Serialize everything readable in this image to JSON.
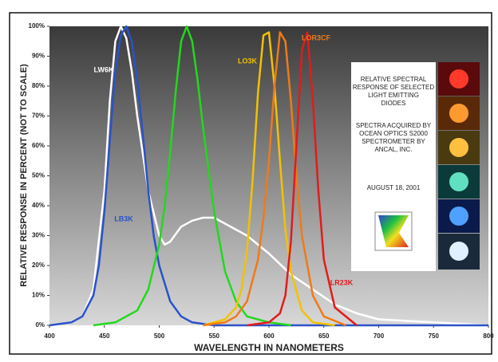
{
  "chart_data": {
    "type": "line",
    "ylabel": "RELATIVE RESPONSE IN PERCENT (NOT TO SCALE)",
    "xlabel": "WAVELENGTH IN NANOMETERS",
    "xlim": [
      400,
      800
    ],
    "xticks": [
      400,
      450,
      500,
      550,
      600,
      650,
      700,
      750,
      800
    ],
    "ylim": [
      0,
      100
    ],
    "yticks": [
      {
        "value": 0,
        "label": "0%"
      },
      {
        "value": 10,
        "label": "10%"
      },
      {
        "value": 20,
        "label": "20%"
      },
      {
        "value": 30,
        "label": "30%"
      },
      {
        "value": 40,
        "label": "40%"
      },
      {
        "value": 50,
        "label": "50%"
      },
      {
        "value": 60,
        "label": "60%"
      },
      {
        "value": 70,
        "label": "70%"
      },
      {
        "value": 80,
        "label": "80%"
      },
      {
        "value": 90,
        "label": "90%"
      },
      {
        "value": 100,
        "label": "100%"
      }
    ],
    "annotations": [
      "RELATIVE SPECTRAL RESPONSE OF SELECTED LIGHT EMITTING DIODES",
      "SPECTRA ACQUIRED BY OCEAN OPTICS S2000 SPECTROMETER BY ANCAL, INC.",
      "AUGUST 18, 2001"
    ],
    "series": [
      {
        "name": "LW6K",
        "color": "#ffffff",
        "x": [
          400,
          420,
          430,
          440,
          450,
          455,
          460,
          465,
          470,
          475,
          480,
          490,
          500,
          505,
          510,
          520,
          530,
          540,
          550,
          560,
          580,
          600,
          620,
          640,
          660,
          680,
          700,
          750,
          800
        ],
        "values": [
          0,
          1,
          3,
          12,
          45,
          75,
          95,
          100,
          96,
          85,
          70,
          45,
          30,
          27,
          28,
          33,
          35,
          36,
          36,
          34,
          30,
          24,
          17,
          12,
          7,
          4,
          2,
          1,
          0
        ]
      },
      {
        "name": "LB3K",
        "color": "#2a52c9",
        "x": [
          400,
          420,
          430,
          440,
          445,
          450,
          455,
          460,
          465,
          470,
          475,
          480,
          485,
          490,
          495,
          500,
          510,
          520,
          530,
          550,
          600,
          800
        ],
        "values": [
          0,
          1,
          3,
          10,
          20,
          38,
          62,
          85,
          97,
          100,
          95,
          82,
          64,
          45,
          30,
          20,
          8,
          3,
          1,
          0,
          0,
          0
        ]
      },
      {
        "color": "#22d81e",
        "x": [
          440,
          460,
          480,
          490,
          500,
          505,
          510,
          515,
          520,
          525,
          530,
          535,
          540,
          550,
          560,
          570,
          580,
          600,
          620
        ],
        "values": [
          0,
          1,
          5,
          12,
          27,
          40,
          58,
          78,
          95,
          100,
          95,
          82,
          66,
          38,
          18,
          8,
          3,
          1,
          0
        ]
      },
      {
        "name": "LO3K",
        "color": "#f2c200",
        "x": [
          540,
          560,
          570,
          575,
          580,
          585,
          590,
          595,
          600,
          605,
          610,
          615,
          620,
          630,
          640,
          660
        ],
        "values": [
          0,
          2,
          6,
          12,
          25,
          48,
          78,
          97,
          98,
          80,
          55,
          32,
          18,
          5,
          1,
          0
        ]
      },
      {
        "name": "LOR3CF",
        "color": "#f07a18",
        "x": [
          540,
          560,
          570,
          580,
          590,
          595,
          600,
          605,
          610,
          615,
          620,
          625,
          630,
          640,
          650,
          670
        ],
        "values": [
          0,
          1,
          3,
          8,
          22,
          36,
          55,
          80,
          98,
          95,
          75,
          50,
          30,
          10,
          3,
          0
        ]
      },
      {
        "name": "LR23K",
        "color": "#e21b1b",
        "x": [
          580,
          600,
          610,
          615,
          620,
          625,
          630,
          635,
          640,
          645,
          650,
          660,
          680
        ],
        "values": [
          0,
          1,
          4,
          10,
          28,
          60,
          92,
          98,
          75,
          45,
          22,
          6,
          0
        ]
      }
    ]
  }
}
